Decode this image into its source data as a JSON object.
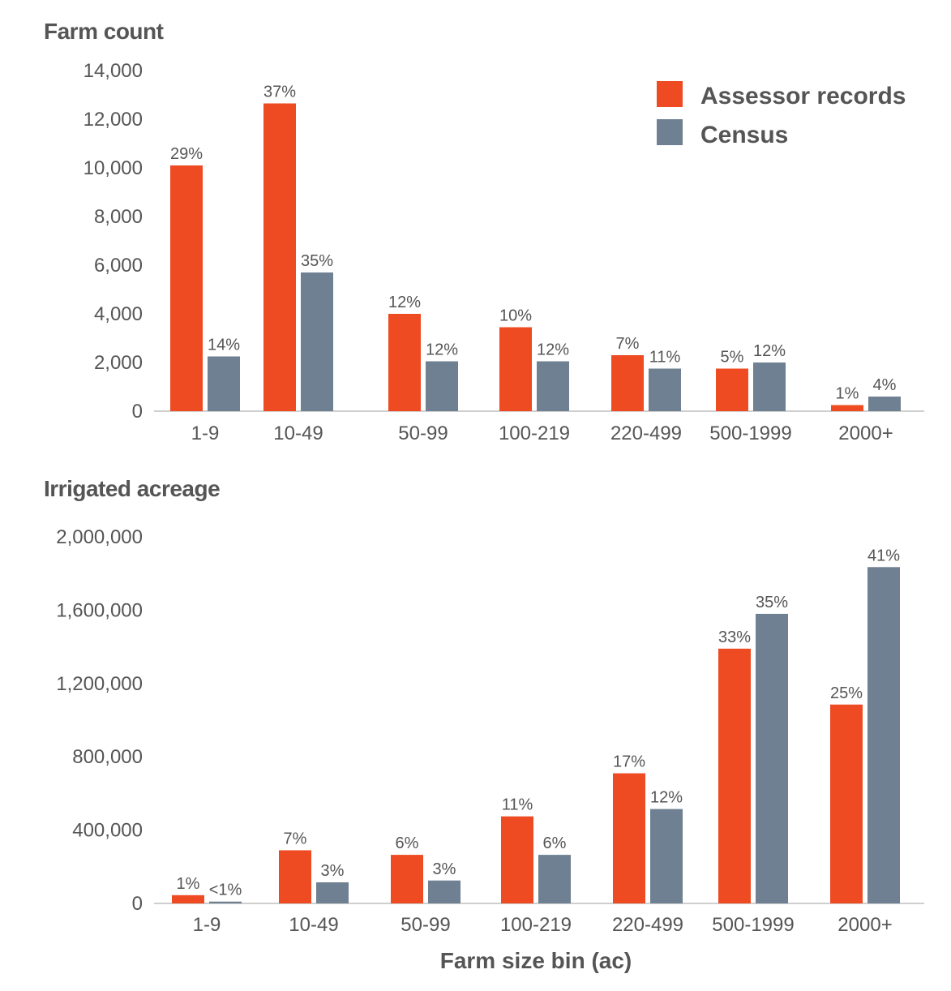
{
  "chart_data": [
    {
      "type": "bar",
      "title": "",
      "ylabel": "Farm count",
      "xlabel": "",
      "ylim": [
        0,
        14000
      ],
      "yticks": [
        0,
        2000,
        4000,
        6000,
        8000,
        10000,
        12000,
        14000
      ],
      "ytick_labels": [
        "0",
        "2,000",
        "4,000",
        "6,000",
        "8,000",
        "10,000",
        "12,000",
        "14,000"
      ],
      "categories": [
        "1-9",
        "10-49",
        "50-99",
        "100-219",
        "220-499",
        "500-1999",
        "2000+"
      ],
      "series": [
        {
          "name": "Assessor records",
          "color": "#EE4B23",
          "values": [
            10100,
            12650,
            4000,
            3450,
            2300,
            1750,
            250
          ],
          "labels": [
            "29%",
            "37%",
            "12%",
            "10%",
            "7%",
            "5%",
            "1%"
          ]
        },
        {
          "name": "Census",
          "color": "#6E8091",
          "values": [
            2250,
            5700,
            2050,
            2050,
            1750,
            2000,
            600
          ],
          "labels": [
            "14%",
            "35%",
            "12%",
            "12%",
            "11%",
            "12%",
            "4%"
          ]
        }
      ],
      "legend": "top-right",
      "grid": false
    },
    {
      "type": "bar",
      "title": "",
      "ylabel": "Irrigated acreage",
      "xlabel": "Farm size bin (ac)",
      "ylim": [
        0,
        2000000
      ],
      "yticks": [
        0,
        400000,
        800000,
        1200000,
        1600000,
        2000000
      ],
      "ytick_labels": [
        "0",
        "400,000",
        "800,000",
        "1,200,000",
        "1,600,000",
        "2,000,000"
      ],
      "categories": [
        "1-9",
        "10-49",
        "50-99",
        "100-219",
        "220-499",
        "500-1999",
        "2000+"
      ],
      "series": [
        {
          "name": "Assessor records",
          "color": "#EE4B23",
          "values": [
            45000,
            290000,
            265000,
            475000,
            710000,
            1390000,
            1085000
          ],
          "labels": [
            "1%",
            "7%",
            "6%",
            "11%",
            "17%",
            "33%",
            "25%"
          ]
        },
        {
          "name": "Census",
          "color": "#6E8091",
          "values": [
            10000,
            115000,
            125000,
            265000,
            515000,
            1580000,
            1835000
          ],
          "labels": [
            "<1%",
            "3%",
            "3%",
            "6%",
            "12%",
            "35%",
            "41%"
          ]
        }
      ],
      "grid": false
    }
  ]
}
